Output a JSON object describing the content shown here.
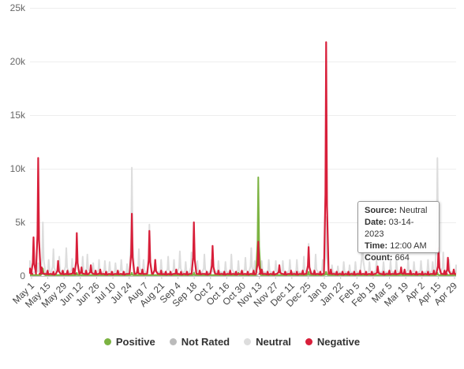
{
  "chart_data": {
    "type": "line",
    "title": "",
    "xlabel": "",
    "ylabel": "",
    "ylim": [
      0,
      25000
    ],
    "y_ticks": [
      "0",
      "5k",
      "10k",
      "15k",
      "20k",
      "25k"
    ],
    "x_ticks": [
      "May 1",
      "May 15",
      "May 29",
      "Jun 12",
      "Jun 26",
      "Jul 10",
      "Jul 24",
      "Aug 7",
      "Aug 21",
      "Sep 4",
      "Sep 18",
      "Oct 2",
      "Oct 16",
      "Oct 30",
      "Nov 13",
      "Nov 27",
      "Dec 11",
      "Dec 25",
      "Jan 8",
      "Jan 22",
      "Feb 5",
      "Feb 19",
      "Mar 5",
      "Mar 19",
      "Apr 2",
      "Apr 15",
      "Apr 29"
    ],
    "grid": "horizontal",
    "legend_position": "bottom",
    "series": [
      {
        "name": "Neutral",
        "color": "#dddddd",
        "peaks": [
          {
            "x": "2022-05-01",
            "y": 1400
          },
          {
            "x": "2022-05-08",
            "y": 1200
          },
          {
            "x": "2022-05-12",
            "y": 5000
          },
          {
            "x": "2022-05-17",
            "y": 1500
          },
          {
            "x": "2022-05-21",
            "y": 2500
          },
          {
            "x": "2022-05-26",
            "y": 1800
          },
          {
            "x": "2022-06-01",
            "y": 2600
          },
          {
            "x": "2022-06-06",
            "y": 1600
          },
          {
            "x": "2022-06-10",
            "y": 3200
          },
          {
            "x": "2022-06-15",
            "y": 1800
          },
          {
            "x": "2022-06-19",
            "y": 2000
          },
          {
            "x": "2022-06-24",
            "y": 1200
          },
          {
            "x": "2022-06-29",
            "y": 1500
          },
          {
            "x": "2022-07-04",
            "y": 1400
          },
          {
            "x": "2022-07-08",
            "y": 1300
          },
          {
            "x": "2022-07-13",
            "y": 1200
          },
          {
            "x": "2022-07-18",
            "y": 1500
          },
          {
            "x": "2022-07-23",
            "y": 1100
          },
          {
            "x": "2022-07-27",
            "y": 10100
          },
          {
            "x": "2022-08-02",
            "y": 2500
          },
          {
            "x": "2022-08-06",
            "y": 1500
          },
          {
            "x": "2022-08-11",
            "y": 4800
          },
          {
            "x": "2022-08-16",
            "y": 1500
          },
          {
            "x": "2022-08-21",
            "y": 1500
          },
          {
            "x": "2022-08-27",
            "y": 1800
          },
          {
            "x": "2022-09-01",
            "y": 1500
          },
          {
            "x": "2022-09-06",
            "y": 2300
          },
          {
            "x": "2022-09-11",
            "y": 1300
          },
          {
            "x": "2022-09-16",
            "y": 2200
          },
          {
            "x": "2022-09-21",
            "y": 1400
          },
          {
            "x": "2022-09-27",
            "y": 2000
          },
          {
            "x": "2022-10-03",
            "y": 1500
          },
          {
            "x": "2022-10-09",
            "y": 1400
          },
          {
            "x": "2022-10-15",
            "y": 1300
          },
          {
            "x": "2022-10-20",
            "y": 2000
          },
          {
            "x": "2022-10-26",
            "y": 1400
          },
          {
            "x": "2022-11-01",
            "y": 1700
          },
          {
            "x": "2022-11-06",
            "y": 2600
          },
          {
            "x": "2022-11-09",
            "y": 1400
          },
          {
            "x": "2022-11-12",
            "y": 4000
          },
          {
            "x": "2022-11-15",
            "y": 1400
          },
          {
            "x": "2022-11-21",
            "y": 1500
          },
          {
            "x": "2022-11-27",
            "y": 1400
          },
          {
            "x": "2022-12-03",
            "y": 1400
          },
          {
            "x": "2022-12-09",
            "y": 1500
          },
          {
            "x": "2022-12-15",
            "y": 1500
          },
          {
            "x": "2022-12-21",
            "y": 1800
          },
          {
            "x": "2022-12-25",
            "y": 3000
          },
          {
            "x": "2022-12-31",
            "y": 2000
          },
          {
            "x": "2023-01-06",
            "y": 1500
          },
          {
            "x": "2023-01-09",
            "y": 5500
          },
          {
            "x": "2023-01-14",
            "y": 1000
          },
          {
            "x": "2023-01-19",
            "y": 900
          },
          {
            "x": "2023-01-24",
            "y": 1300
          },
          {
            "x": "2023-01-29",
            "y": 1000
          },
          {
            "x": "2023-02-03",
            "y": 1300
          },
          {
            "x": "2023-02-09",
            "y": 4700
          },
          {
            "x": "2023-02-15",
            "y": 1300
          },
          {
            "x": "2023-02-21",
            "y": 1500
          },
          {
            "x": "2023-02-27",
            "y": 1300
          },
          {
            "x": "2023-03-05",
            "y": 1400
          },
          {
            "x": "2023-03-10",
            "y": 1500
          },
          {
            "x": "2023-03-14",
            "y": 664
          },
          {
            "x": "2023-03-20",
            "y": 1500
          },
          {
            "x": "2023-03-25",
            "y": 1300
          },
          {
            "x": "2023-03-31",
            "y": 1400
          },
          {
            "x": "2023-04-06",
            "y": 1500
          },
          {
            "x": "2023-04-10",
            "y": 1300
          },
          {
            "x": "2023-04-14",
            "y": 11000
          },
          {
            "x": "2023-04-19",
            "y": 2200
          },
          {
            "x": "2023-04-24",
            "y": 1500
          },
          {
            "x": "2023-04-30",
            "y": 1000
          }
        ]
      },
      {
        "name": "Not Rated",
        "color": "#bbbbbb",
        "peaks": [
          {
            "x": "2022-05-12",
            "y": 400
          },
          {
            "x": "2022-07-27",
            "y": 300
          },
          {
            "x": "2022-11-13",
            "y": 400
          },
          {
            "x": "2023-01-09",
            "y": 300
          },
          {
            "x": "2023-04-14",
            "y": 300
          }
        ]
      },
      {
        "name": "Positive",
        "color": "#7cb342",
        "peaks": [
          {
            "x": "2022-05-12",
            "y": 700
          },
          {
            "x": "2022-06-10",
            "y": 300
          },
          {
            "x": "2022-07-27",
            "y": 300
          },
          {
            "x": "2022-09-18",
            "y": 300
          },
          {
            "x": "2022-10-26",
            "y": 300
          },
          {
            "x": "2022-11-12",
            "y": 9200
          },
          {
            "x": "2022-12-25",
            "y": 400
          },
          {
            "x": "2023-01-09",
            "y": 400
          },
          {
            "x": "2023-03-14",
            "y": 300
          },
          {
            "x": "2023-04-14",
            "y": 300
          }
        ]
      },
      {
        "name": "Negative",
        "color": "#d81f3a",
        "peaks": [
          {
            "x": "2022-05-01",
            "y": 700
          },
          {
            "x": "2022-05-04",
            "y": 3600
          },
          {
            "x": "2022-05-08",
            "y": 11000
          },
          {
            "x": "2022-05-11",
            "y": 800
          },
          {
            "x": "2022-05-16",
            "y": 500
          },
          {
            "x": "2022-05-21",
            "y": 400
          },
          {
            "x": "2022-05-25",
            "y": 1400
          },
          {
            "x": "2022-05-29",
            "y": 500
          },
          {
            "x": "2022-06-02",
            "y": 500
          },
          {
            "x": "2022-06-07",
            "y": 700
          },
          {
            "x": "2022-06-10",
            "y": 4000
          },
          {
            "x": "2022-06-14",
            "y": 800
          },
          {
            "x": "2022-06-18",
            "y": 500
          },
          {
            "x": "2022-06-22",
            "y": 1000
          },
          {
            "x": "2022-06-26",
            "y": 500
          },
          {
            "x": "2022-06-30",
            "y": 600
          },
          {
            "x": "2022-07-05",
            "y": 400
          },
          {
            "x": "2022-07-10",
            "y": 400
          },
          {
            "x": "2022-07-15",
            "y": 500
          },
          {
            "x": "2022-07-20",
            "y": 400
          },
          {
            "x": "2022-07-27",
            "y": 5800
          },
          {
            "x": "2022-08-01",
            "y": 800
          },
          {
            "x": "2022-08-05",
            "y": 600
          },
          {
            "x": "2022-08-11",
            "y": 4200
          },
          {
            "x": "2022-08-16",
            "y": 1500
          },
          {
            "x": "2022-08-21",
            "y": 500
          },
          {
            "x": "2022-08-25",
            "y": 400
          },
          {
            "x": "2022-08-29",
            "y": 400
          },
          {
            "x": "2022-09-03",
            "y": 600
          },
          {
            "x": "2022-09-07",
            "y": 400
          },
          {
            "x": "2022-09-12",
            "y": 400
          },
          {
            "x": "2022-09-18",
            "y": 5000
          },
          {
            "x": "2022-09-23",
            "y": 500
          },
          {
            "x": "2022-09-29",
            "y": 400
          },
          {
            "x": "2022-10-04",
            "y": 2800
          },
          {
            "x": "2022-10-09",
            "y": 500
          },
          {
            "x": "2022-10-14",
            "y": 400
          },
          {
            "x": "2022-10-19",
            "y": 500
          },
          {
            "x": "2022-10-24",
            "y": 400
          },
          {
            "x": "2022-10-29",
            "y": 500
          },
          {
            "x": "2022-11-03",
            "y": 400
          },
          {
            "x": "2022-11-08",
            "y": 500
          },
          {
            "x": "2022-11-12",
            "y": 3200
          },
          {
            "x": "2022-11-15",
            "y": 600
          },
          {
            "x": "2022-11-20",
            "y": 400
          },
          {
            "x": "2022-11-25",
            "y": 400
          },
          {
            "x": "2022-11-30",
            "y": 1000
          },
          {
            "x": "2022-12-05",
            "y": 400
          },
          {
            "x": "2022-12-10",
            "y": 500
          },
          {
            "x": "2022-12-15",
            "y": 400
          },
          {
            "x": "2022-12-20",
            "y": 500
          },
          {
            "x": "2022-12-25",
            "y": 2700
          },
          {
            "x": "2022-12-30",
            "y": 500
          },
          {
            "x": "2023-01-04",
            "y": 400
          },
          {
            "x": "2023-01-09",
            "y": 21800
          },
          {
            "x": "2023-01-13",
            "y": 600
          },
          {
            "x": "2023-01-18",
            "y": 400
          },
          {
            "x": "2023-01-23",
            "y": 400
          },
          {
            "x": "2023-01-28",
            "y": 400
          },
          {
            "x": "2023-02-02",
            "y": 400
          },
          {
            "x": "2023-02-07",
            "y": 500
          },
          {
            "x": "2023-02-12",
            "y": 400
          },
          {
            "x": "2023-02-17",
            "y": 400
          },
          {
            "x": "2023-02-22",
            "y": 900
          },
          {
            "x": "2023-02-27",
            "y": 400
          },
          {
            "x": "2023-03-04",
            "y": 500
          },
          {
            "x": "2023-03-09",
            "y": 500
          },
          {
            "x": "2023-03-14",
            "y": 800
          },
          {
            "x": "2023-03-17",
            "y": 600
          },
          {
            "x": "2023-03-22",
            "y": 500
          },
          {
            "x": "2023-03-27",
            "y": 400
          },
          {
            "x": "2023-04-01",
            "y": 400
          },
          {
            "x": "2023-04-06",
            "y": 400
          },
          {
            "x": "2023-04-11",
            "y": 500
          },
          {
            "x": "2023-04-15",
            "y": 2600
          },
          {
            "x": "2023-04-20",
            "y": 500
          },
          {
            "x": "2023-04-23",
            "y": 1700
          },
          {
            "x": "2023-04-28",
            "y": 600
          }
        ]
      }
    ],
    "x_range": [
      "2022-05-01",
      "2023-04-30"
    ]
  },
  "legend": {
    "items": [
      {
        "label": "Positive",
        "color": "#7cb342"
      },
      {
        "label": "Not Rated",
        "color": "#bbbbbb"
      },
      {
        "label": "Neutral",
        "color": "#dddddd"
      },
      {
        "label": "Negative",
        "color": "#d81f3a"
      }
    ]
  },
  "tooltip": {
    "source_label": "Source:",
    "source_value": "Neutral",
    "date_label": "Date:",
    "date_value": "03-14-2023",
    "time_label": "Time:",
    "time_value": "12:00 AM",
    "count_label": "Count:",
    "count_value": "664"
  }
}
